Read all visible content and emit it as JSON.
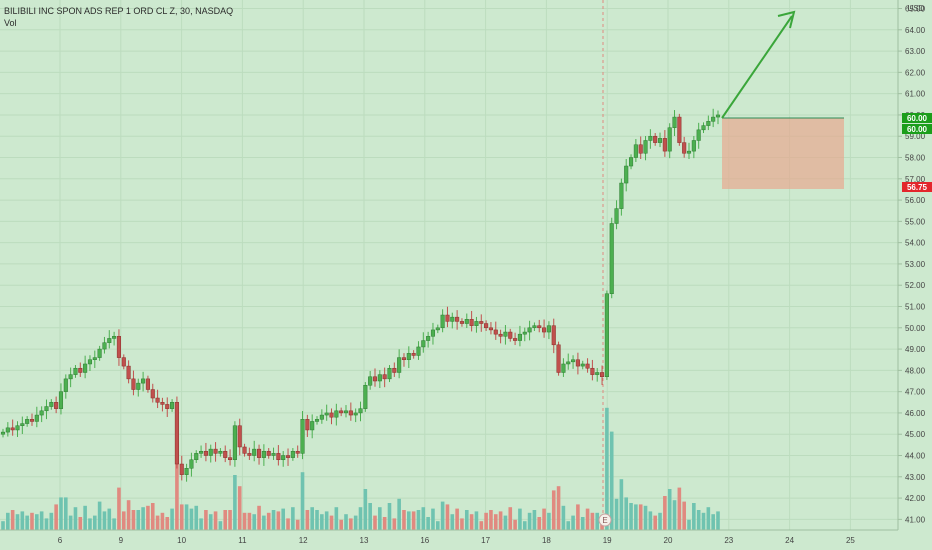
{
  "header": {
    "symbol_line": "BILIBILI INC SPON ADS REP 1 ORD CL Z, 30, NASDAQ",
    "volume_label": "Vol"
  },
  "price_axis": {
    "currency": "USD",
    "tag_price": "60.00",
    "tag_last": "60.00",
    "tag_stop": "56.75"
  },
  "earnings_marker": {
    "label": "E"
  },
  "colors": {
    "background": "#cde9cf",
    "up": "#4caf50",
    "down": "#c0504d",
    "vol_up": "#6fc3b0",
    "vol_down": "#e08a80",
    "arrow": "#3aa63a",
    "box_fill": "#e9a48c",
    "tag_green": "#1b9e1b",
    "tag_red": "#e3262b"
  },
  "chart_data": {
    "type": "candlestick",
    "title": "BILIBILI INC SPON ADS REP 1 ORD CL Z, 30, NASDAQ",
    "ylim": [
      40.5,
      65.4
    ],
    "y_ticks": [
      41,
      42,
      43,
      44,
      45,
      46,
      47,
      48,
      49,
      50,
      51,
      52,
      53,
      54,
      55,
      56,
      57,
      58,
      59,
      60,
      61,
      62,
      63,
      64,
      65
    ],
    "x_ticks": [
      "6",
      "9",
      "10",
      "11",
      "12",
      "13",
      "16",
      "17",
      "18",
      "19",
      "20",
      "23",
      "24",
      "25"
    ],
    "grid": true,
    "close": [
      45.1,
      45.3,
      45.2,
      45.4,
      45.5,
      45.7,
      45.6,
      45.9,
      46.1,
      46.3,
      46.5,
      46.2,
      47.0,
      47.6,
      47.8,
      48.1,
      47.9,
      48.3,
      48.5,
      48.6,
      49.0,
      49.3,
      49.5,
      49.6,
      48.6,
      48.2,
      47.6,
      47.1,
      47.4,
      47.6,
      47.1,
      46.7,
      46.5,
      46.4,
      46.2,
      46.5,
      43.6,
      43.1,
      43.4,
      43.8,
      44.1,
      44.2,
      44.0,
      44.3,
      44.1,
      44.2,
      43.9,
      43.8,
      45.4,
      44.4,
      44.1,
      44.0,
      44.3,
      43.9,
      44.2,
      44.0,
      44.1,
      43.8,
      44.0,
      43.9,
      44.2,
      44.1,
      45.7,
      45.2,
      45.6,
      45.7,
      45.9,
      46.0,
      45.8,
      46.1,
      46.0,
      46.1,
      45.9,
      46.0,
      46.2,
      47.3,
      47.7,
      47.5,
      47.8,
      47.6,
      48.1,
      47.9,
      48.6,
      48.5,
      48.8,
      48.7,
      49.1,
      49.4,
      49.6,
      49.9,
      50.0,
      50.6,
      50.3,
      50.5,
      50.3,
      50.2,
      50.4,
      50.1,
      50.3,
      50.2,
      50.0,
      49.9,
      49.7,
      49.6,
      49.8,
      49.5,
      49.4,
      49.7,
      49.8,
      50.0,
      50.1,
      50.0,
      49.8,
      50.1,
      49.2,
      47.9,
      48.3,
      48.4,
      48.5,
      48.2,
      48.3,
      48.1,
      47.8,
      47.9,
      47.7,
      51.6,
      54.9,
      55.6,
      56.8,
      57.6,
      58.0,
      58.6,
      58.2,
      58.8,
      59.0,
      58.7,
      58.9,
      58.3,
      59.4,
      59.9,
      58.7,
      58.2,
      58.3,
      58.8,
      59.3,
      59.5,
      59.7,
      59.9,
      60.0
    ]
  }
}
